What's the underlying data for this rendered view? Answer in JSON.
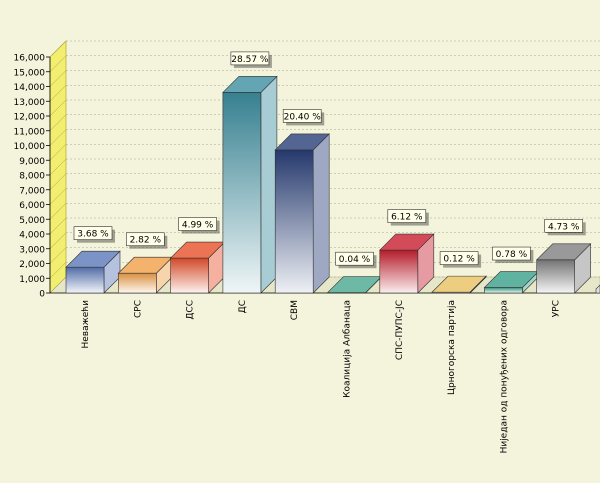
{
  "chart_data": {
    "type": "bar",
    "style": "3d",
    "title": "",
    "xlabel": "",
    "ylabel": "",
    "ylim": [
      0,
      16000
    ],
    "yticks": [
      0,
      1000,
      2000,
      3000,
      4000,
      5000,
      6000,
      7000,
      8000,
      9000,
      10000,
      11000,
      12000,
      13000,
      14000,
      15000,
      16000
    ],
    "ytick_labels": [
      "0",
      "1,000",
      "2,000",
      "3,000",
      "4,000",
      "5,000",
      "6,000",
      "7,000",
      "8,000",
      "9,000",
      "10,000",
      "11,000",
      "12,000",
      "13,000",
      "14,000",
      "15,000",
      "16,000"
    ],
    "grid": true,
    "categories": [
      "Неважећи",
      "СРС",
      "ДСС",
      "ДС",
      "СВМ",
      "Коалиција Албанаца",
      "СПС-ПУПС-ЈС",
      "Црногорска партија",
      "Ниједан од понуђених одговора",
      "УРС"
    ],
    "values": [
      1750,
      1340,
      2370,
      13600,
      9700,
      20,
      2910,
      60,
      370,
      2250
    ],
    "data_labels": [
      "3.68 %",
      "2.82 %",
      "4.99 %",
      "28.57 %",
      "20.40 %",
      "0.04 %",
      "6.12 %",
      "0.12 %",
      "0.78 %",
      "4.73 %"
    ],
    "colors": [
      "#5a78b8",
      "#f0a048",
      "#e8502a",
      "#3c8ea0",
      "#283e78",
      "#48a890",
      "#c81e2e",
      "#e8c060",
      "#38a088",
      "#808080"
    ]
  }
}
